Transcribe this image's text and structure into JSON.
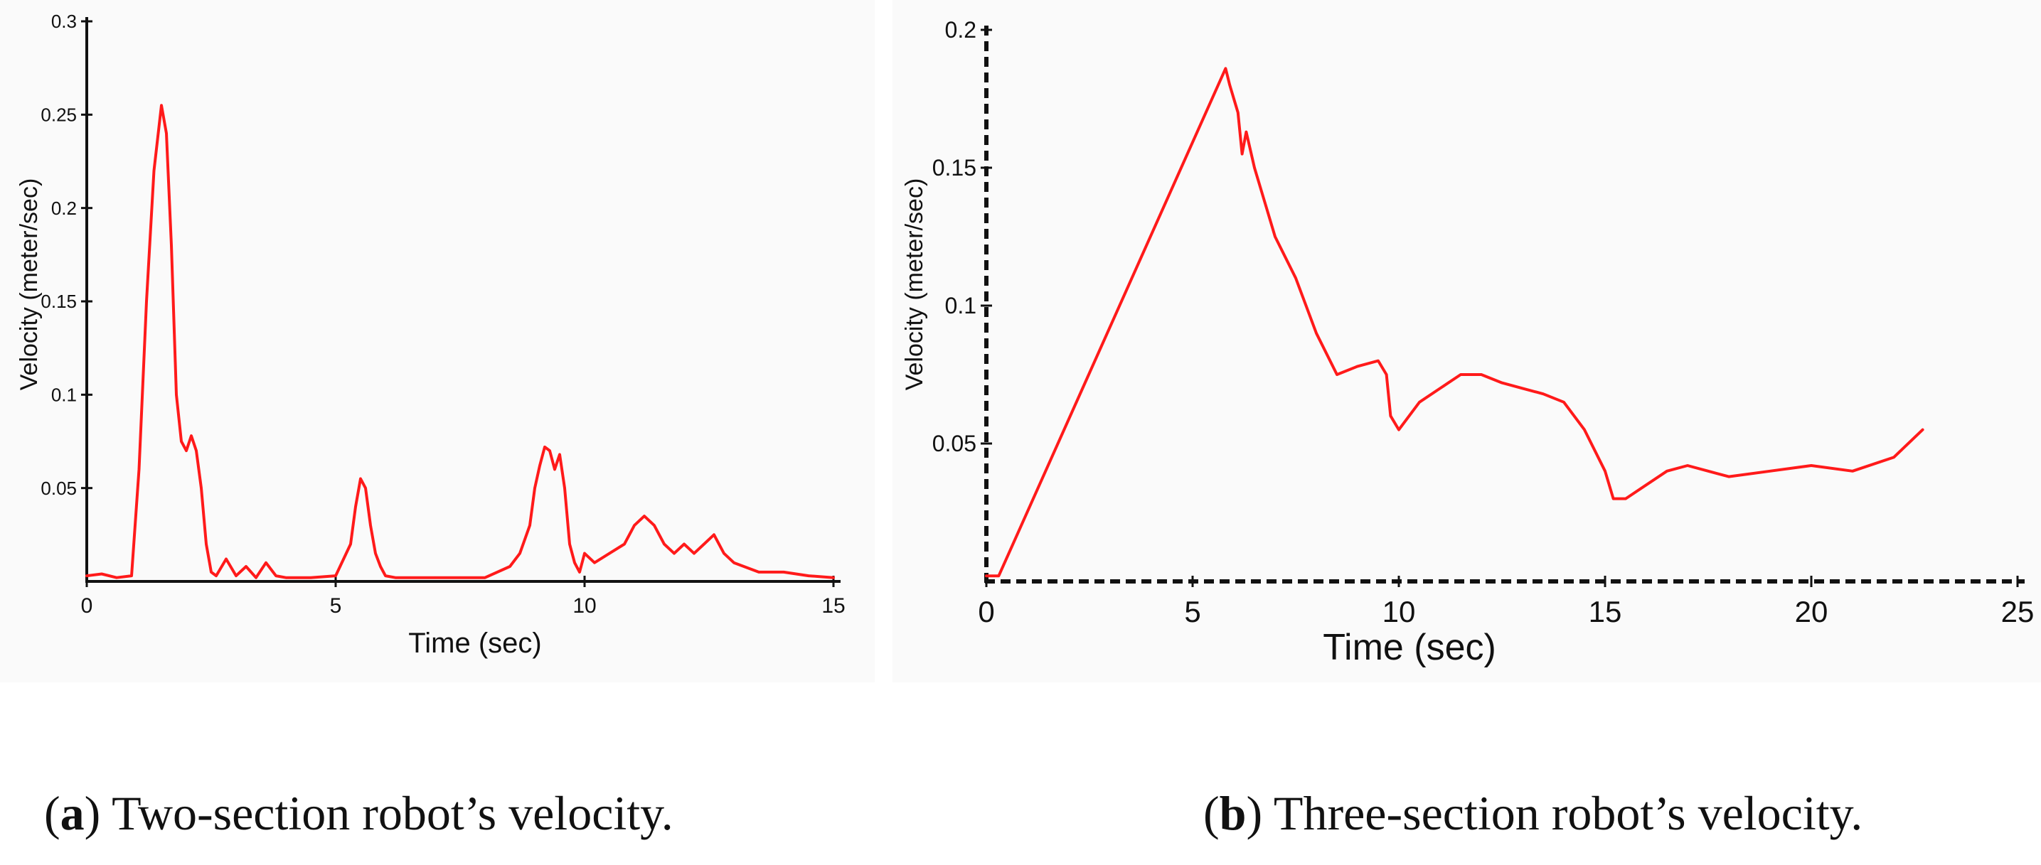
{
  "chart_data": [
    {
      "type": "line",
      "panel": "a",
      "xlabel": "Time (sec)",
      "ylabel": "Velocity (meter/sec)",
      "xlim": [
        0,
        15
      ],
      "ylim": [
        0,
        0.3
      ],
      "x_ticks": [
        0,
        5,
        10,
        15
      ],
      "x_tick_labels": [
        "0",
        "5",
        "10",
        "15"
      ],
      "y_ticks": [
        0.05,
        0.1,
        0.15,
        0.2,
        0.25,
        0.3
      ],
      "y_tick_labels": [
        "0.05",
        "0.1",
        "0.15",
        "0.2",
        "0.25",
        "0.3"
      ],
      "line_color": "#ff1a1a",
      "series": [
        {
          "name": "Two-section robot velocity",
          "x": [
            0,
            0.3,
            0.6,
            0.9,
            1.05,
            1.2,
            1.35,
            1.5,
            1.6,
            1.7,
            1.8,
            1.9,
            2.0,
            2.1,
            2.2,
            2.3,
            2.4,
            2.5,
            2.6,
            2.8,
            3.0,
            3.2,
            3.4,
            3.6,
            3.8,
            4.0,
            4.5,
            5.0,
            5.3,
            5.4,
            5.5,
            5.6,
            5.7,
            5.8,
            5.9,
            6.0,
            6.2,
            6.5,
            7.0,
            7.5,
            8.0,
            8.5,
            8.7,
            8.9,
            9.0,
            9.1,
            9.2,
            9.3,
            9.4,
            9.5,
            9.6,
            9.7,
            9.8,
            9.9,
            10.0,
            10.2,
            10.5,
            10.8,
            11.0,
            11.2,
            11.4,
            11.6,
            11.8,
            12.0,
            12.2,
            12.4,
            12.6,
            12.8,
            13.0,
            13.2,
            13.5,
            14.0,
            14.5,
            15.0
          ],
          "y": [
            0.003,
            0.004,
            0.002,
            0.003,
            0.06,
            0.15,
            0.22,
            0.255,
            0.24,
            0.18,
            0.1,
            0.075,
            0.07,
            0.078,
            0.07,
            0.05,
            0.02,
            0.005,
            0.003,
            0.012,
            0.003,
            0.008,
            0.002,
            0.01,
            0.003,
            0.002,
            0.002,
            0.003,
            0.02,
            0.04,
            0.055,
            0.05,
            0.03,
            0.015,
            0.008,
            0.003,
            0.002,
            0.002,
            0.002,
            0.002,
            0.002,
            0.008,
            0.015,
            0.03,
            0.05,
            0.062,
            0.072,
            0.07,
            0.06,
            0.068,
            0.05,
            0.02,
            0.01,
            0.005,
            0.015,
            0.01,
            0.015,
            0.02,
            0.03,
            0.035,
            0.03,
            0.02,
            0.015,
            0.02,
            0.015,
            0.02,
            0.025,
            0.015,
            0.01,
            0.008,
            0.005,
            0.005,
            0.003,
            0.002
          ]
        }
      ]
    },
    {
      "type": "line",
      "panel": "b",
      "xlabel": "Time (sec)",
      "ylabel": "Velocity (meter/sec)",
      "xlim": [
        0,
        25
      ],
      "ylim": [
        0,
        0.2
      ],
      "x_ticks": [
        0,
        5,
        10,
        15,
        20,
        25
      ],
      "x_tick_labels": [
        "0",
        "5",
        "10",
        "15",
        "20",
        "25"
      ],
      "y_ticks": [
        0.05,
        0.1,
        0.15,
        0.2
      ],
      "y_tick_labels": [
        "0.05",
        "0.1",
        "0.15",
        "0.2"
      ],
      "line_color": "#ff1a1a",
      "series": [
        {
          "name": "Three-section robot velocity",
          "x": [
            0,
            0.3,
            5.8,
            5.9,
            6.0,
            6.1,
            6.2,
            6.3,
            6.5,
            6.7,
            7.0,
            7.5,
            8.0,
            8.5,
            9.0,
            9.5,
            9.7,
            9.8,
            10.0,
            10.5,
            11.0,
            11.5,
            12.0,
            12.5,
            13.0,
            13.5,
            14.0,
            14.5,
            15.0,
            15.2,
            15.5,
            16.0,
            16.5,
            17.0,
            17.5,
            18.0,
            19.0,
            20.0,
            21.0,
            22.0,
            22.7
          ],
          "y": [
            0.002,
            0.002,
            0.186,
            0.18,
            0.175,
            0.17,
            0.155,
            0.163,
            0.15,
            0.14,
            0.125,
            0.11,
            0.09,
            0.075,
            0.078,
            0.08,
            0.075,
            0.06,
            0.055,
            0.065,
            0.07,
            0.075,
            0.075,
            0.072,
            0.07,
            0.068,
            0.065,
            0.055,
            0.04,
            0.03,
            0.03,
            0.035,
            0.04,
            0.042,
            0.04,
            0.038,
            0.04,
            0.042,
            0.04,
            0.045,
            0.055
          ]
        }
      ]
    }
  ],
  "captions": [
    {
      "label": "a",
      "text": " Two-section robot’s velocity."
    },
    {
      "label": "b",
      "text": " Three-section robot’s velocity."
    }
  ]
}
